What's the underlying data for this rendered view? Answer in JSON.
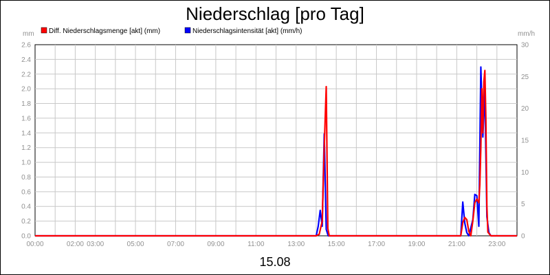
{
  "chart_data": {
    "type": "line",
    "title": "Niederschlag [pro Tag]",
    "date_label": "15.08",
    "left_axis": {
      "unit": "mm",
      "ylim": [
        0,
        2.6
      ],
      "ticks": [
        "0.0",
        "0.2",
        "0.4",
        "0.6",
        "0.8",
        "1.0",
        "1.2",
        "1.4",
        "1.6",
        "1.8",
        "2.0",
        "2.2",
        "2.4",
        "2.6"
      ]
    },
    "right_axis": {
      "unit": "mm/h",
      "ylim": [
        0,
        30
      ],
      "ticks": [
        "0",
        "5",
        "10",
        "15",
        "20",
        "25",
        "30"
      ]
    },
    "x_axis": {
      "xlim": [
        0,
        24
      ],
      "tick_labels": [
        {
          "x": 0,
          "label": "00:00"
        },
        {
          "x": 2,
          "label": "02:00"
        },
        {
          "x": 3,
          "label": "03:00"
        },
        {
          "x": 5,
          "label": "05:00"
        },
        {
          "x": 7,
          "label": "07:00"
        },
        {
          "x": 9,
          "label": "09:00"
        },
        {
          "x": 11,
          "label": "11:00"
        },
        {
          "x": 13,
          "label": "13:00"
        },
        {
          "x": 15,
          "label": "15:00"
        },
        {
          "x": 17,
          "label": "17:00"
        },
        {
          "x": 19,
          "label": "19:00"
        },
        {
          "x": 21,
          "label": "21:00"
        },
        {
          "x": 23,
          "label": "23:00"
        }
      ]
    },
    "grid": true,
    "legend_position": "top",
    "series": [
      {
        "name": "Diff. Niederschlagsmenge [akt] (mm)",
        "color": "#ff0000",
        "axis": "left",
        "points": [
          [
            0,
            0
          ],
          [
            14.0,
            0
          ],
          [
            14.15,
            0.02
          ],
          [
            14.3,
            0.2
          ],
          [
            14.4,
            1.2
          ],
          [
            14.5,
            2.03
          ],
          [
            14.58,
            0.1
          ],
          [
            14.65,
            0
          ],
          [
            21.2,
            0
          ],
          [
            21.3,
            0.18
          ],
          [
            21.4,
            0.25
          ],
          [
            21.5,
            0.22
          ],
          [
            21.6,
            0.06
          ],
          [
            21.7,
            0
          ],
          [
            21.8,
            0.2
          ],
          [
            21.9,
            0.45
          ],
          [
            22.0,
            0.5
          ],
          [
            22.1,
            0.45
          ],
          [
            22.15,
            0.7
          ],
          [
            22.2,
            1.2
          ],
          [
            22.25,
            2.0
          ],
          [
            22.3,
            1.4
          ],
          [
            22.35,
            2.1
          ],
          [
            22.4,
            2.25
          ],
          [
            22.45,
            1.6
          ],
          [
            22.5,
            0.4
          ],
          [
            22.55,
            0.05
          ],
          [
            22.7,
            0
          ],
          [
            24,
            0
          ]
        ]
      },
      {
        "name": "Niederschlagsintensität [akt] (mm/h)",
        "color": "#0000ff",
        "axis": "right",
        "points": [
          [
            0,
            0
          ],
          [
            14.0,
            0
          ],
          [
            14.1,
            1.5
          ],
          [
            14.2,
            4.0
          ],
          [
            14.3,
            1.5
          ],
          [
            14.4,
            16.0
          ],
          [
            14.5,
            1.0
          ],
          [
            14.6,
            0
          ],
          [
            21.2,
            0
          ],
          [
            21.3,
            5.3
          ],
          [
            21.4,
            2.0
          ],
          [
            21.5,
            0.5
          ],
          [
            21.6,
            0
          ],
          [
            21.8,
            2.5
          ],
          [
            21.9,
            6.5
          ],
          [
            22.0,
            6.3
          ],
          [
            22.1,
            1.5
          ],
          [
            22.2,
            26.5
          ],
          [
            22.3,
            15.5
          ],
          [
            22.4,
            23.0
          ],
          [
            22.5,
            3.0
          ],
          [
            22.6,
            0.5
          ],
          [
            22.7,
            0
          ],
          [
            24,
            0
          ]
        ]
      }
    ]
  }
}
